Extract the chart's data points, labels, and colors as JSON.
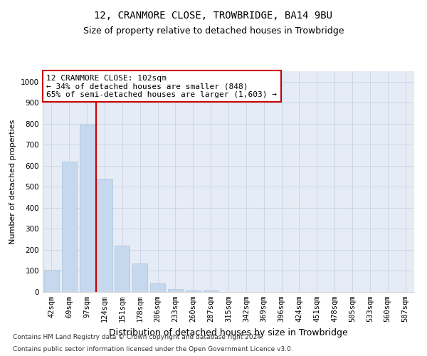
{
  "title": "12, CRANMORE CLOSE, TROWBRIDGE, BA14 9BU",
  "subtitle": "Size of property relative to detached houses in Trowbridge",
  "xlabel": "Distribution of detached houses by size in Trowbridge",
  "ylabel": "Number of detached properties",
  "categories": [
    "42sqm",
    "69sqm",
    "97sqm",
    "124sqm",
    "151sqm",
    "178sqm",
    "206sqm",
    "233sqm",
    "260sqm",
    "287sqm",
    "315sqm",
    "342sqm",
    "369sqm",
    "396sqm",
    "424sqm",
    "451sqm",
    "478sqm",
    "505sqm",
    "533sqm",
    "560sqm",
    "587sqm"
  ],
  "values": [
    105,
    620,
    795,
    540,
    220,
    135,
    40,
    12,
    8,
    8,
    0,
    0,
    0,
    0,
    0,
    0,
    0,
    0,
    0,
    0,
    0
  ],
  "bar_color": "#c5d8ed",
  "bar_edge_color": "#a8c4dc",
  "bar_width": 0.85,
  "vline_index": 2.5,
  "annotation_label": "12 CRANMORE CLOSE: 102sqm",
  "annotation_line1": "← 34% of detached houses are smaller (848)",
  "annotation_line2": "65% of semi-detached houses are larger (1,603) →",
  "annotation_box_facecolor": "#ffffff",
  "annotation_box_edgecolor": "#cc0000",
  "vline_color": "#cc0000",
  "ylim": [
    0,
    1050
  ],
  "yticks": [
    0,
    100,
    200,
    300,
    400,
    500,
    600,
    700,
    800,
    900,
    1000
  ],
  "grid_color": "#cdd6e8",
  "background_color": "#e6ecf5",
  "footnote1": "Contains HM Land Registry data © Crown copyright and database right 2024.",
  "footnote2": "Contains public sector information licensed under the Open Government Licence v3.0.",
  "title_fontsize": 10,
  "subtitle_fontsize": 9,
  "xlabel_fontsize": 9,
  "ylabel_fontsize": 8,
  "tick_fontsize": 7.5,
  "annot_fontsize": 8
}
